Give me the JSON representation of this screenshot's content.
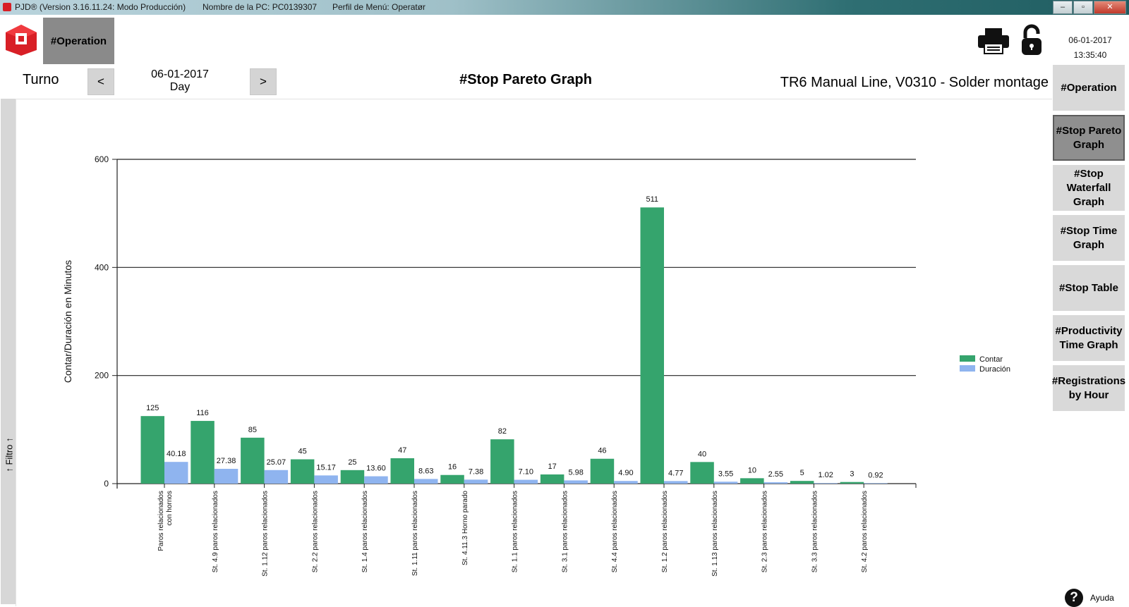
{
  "titlebar": {
    "app_version": "PJD® (Version 3.16.11.24: Modo Producción)",
    "pc_name": "Nombre de la PC: PC0139307",
    "menu_profile": "Perfil de Menú: Operatør",
    "minimize": "–",
    "maximize": "▫",
    "close": "✕"
  },
  "header": {
    "operation_tab": "#Operation",
    "date": "06-01-2017",
    "time": "13:35:40",
    "icons": [
      "app-logo-icon",
      "printer-icon",
      "lock-icon"
    ]
  },
  "toolbar": {
    "turno_label": "Turno",
    "prev": "<",
    "next": ">",
    "date": "06-01-2017",
    "shift": "Day",
    "graph_title": "#Stop Pareto Graph",
    "line_name": "TR6 Manual Line, V0310 - Solder montage"
  },
  "sidebar": {
    "items": [
      {
        "label": "#Operation",
        "active": false
      },
      {
        "label": "#Stop Pareto Graph",
        "active": true
      },
      {
        "label": "#Stop Waterfall Graph",
        "active": false
      },
      {
        "label": "#Stop Time Graph",
        "active": false
      },
      {
        "label": "#Stop Table",
        "active": false
      },
      {
        "label": "#Productivity Time Graph",
        "active": false
      },
      {
        "label": "#Registrations by Hour",
        "active": false
      }
    ]
  },
  "filter": {
    "label": "↑ Filtro ↑"
  },
  "help": {
    "label": "Ayuda"
  },
  "chart_data": {
    "type": "bar",
    "title": "",
    "xlabel": "",
    "ylabel": "Contar/Duración en Minutos",
    "ylim": [
      0,
      600
    ],
    "yticks": [
      0,
      200,
      400,
      600
    ],
    "grid": true,
    "legend_position": "right",
    "colors": {
      "Contar": "#35a46d",
      "Duración": "#8fb4ef"
    },
    "categories": [
      [
        "Paros relacionados",
        "con hornos"
      ],
      [
        "St. 4.9 paros relacionados"
      ],
      [
        "St. 1.12 paros relacionados"
      ],
      [
        "St. 2.2 paros relacionados"
      ],
      [
        "St. 1.4 paros relacionados"
      ],
      [
        "St. 1.11 paros relacionados"
      ],
      [
        "St. 4.11.3 Horno parado"
      ],
      [
        "St. 1.1 paros relacionados"
      ],
      [
        "St. 3.1 paros relacionados"
      ],
      [
        "St. 4.4 paros relacionados"
      ],
      [
        "St. 1.2 paros relacionados"
      ],
      [
        "St. 1.13 paros relacionados"
      ],
      [
        "St. 2.3 paros relacionados"
      ],
      [
        "St. 3.3 paros relacionados"
      ],
      [
        "St. 4.2 paros relacionados"
      ]
    ],
    "series": [
      {
        "name": "Contar",
        "values": [
          125,
          116,
          85,
          45,
          25,
          47,
          16,
          82,
          17,
          46,
          511,
          40,
          10,
          5,
          3
        ],
        "labels": [
          "125",
          "116",
          "85",
          "45",
          "25",
          "47",
          "16",
          "82",
          "17",
          "46",
          "511",
          "40",
          "10",
          "5",
          "3"
        ]
      },
      {
        "name": "Duración",
        "values": [
          40.18,
          27.38,
          25.07,
          15.17,
          13.6,
          8.63,
          7.38,
          7.1,
          5.98,
          4.9,
          4.77,
          3.55,
          2.55,
          1.02,
          0.92
        ],
        "labels": [
          "40.18",
          "27.38",
          "25.07",
          "15.17",
          "13.60",
          "8.63",
          "7.38",
          "7.10",
          "5.98",
          "4.90",
          "4.77",
          "3.55",
          "2.55",
          "1.02",
          "0.92"
        ]
      }
    ]
  }
}
